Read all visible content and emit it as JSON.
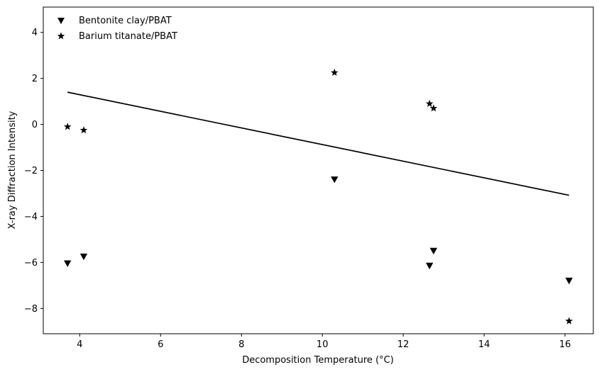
{
  "chart_data": {
    "type": "scatter",
    "title": "",
    "xlabel": "Decomposition Temperature (°C)",
    "ylabel": "X-ray Diffraction Intensity",
    "xlim": [
      3.1,
      16.7
    ],
    "ylim": [
      -9.1,
      5.1
    ],
    "xticks": [
      4,
      6,
      8,
      10,
      12,
      14,
      16
    ],
    "yticks": [
      -8,
      -6,
      -4,
      -2,
      0,
      2,
      4
    ],
    "xtick_labels": [
      "4",
      "6",
      "8",
      "10",
      "12",
      "14",
      "16"
    ],
    "ytick_labels": [
      "−8",
      "−6",
      "−4",
      "−2",
      "0",
      "2",
      "4"
    ],
    "grid": false,
    "legend_position": "top-left",
    "series": [
      {
        "name": "Bentonite clay/PBAT",
        "marker": "triangle-down",
        "color": "#000000",
        "x": [
          3.7,
          4.1,
          10.3,
          12.65,
          12.75,
          16.1
        ],
        "y": [
          -6.05,
          -5.75,
          -2.4,
          -6.15,
          -5.5,
          -6.8
        ]
      },
      {
        "name": "Barium titanate/PBAT",
        "marker": "star",
        "color": "#000000",
        "x": [
          3.7,
          4.1,
          10.3,
          12.65,
          12.75,
          16.1
        ],
        "y": [
          -0.1,
          -0.25,
          2.25,
          0.9,
          0.7,
          -8.55
        ]
      }
    ],
    "trend_line": {
      "x": [
        3.7,
        16.1
      ],
      "y": [
        1.4,
        -3.08
      ],
      "color": "#000000"
    }
  }
}
